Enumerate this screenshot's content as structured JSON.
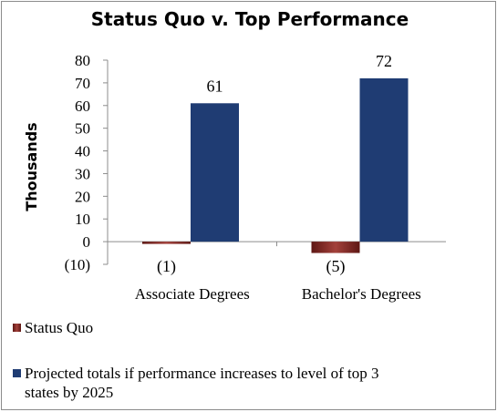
{
  "chart_data": {
    "type": "bar",
    "title": "Status Quo v. Top Performance",
    "ylabel": "Thousands",
    "xlabel": "",
    "categories": [
      "Associate Degrees",
      "Bachelor's Degrees"
    ],
    "series": [
      {
        "name": "Status Quo",
        "values": [
          -1,
          -5
        ],
        "data_labels": [
          "(1)",
          "(5)"
        ],
        "color": "#7a2420"
      },
      {
        "name": "Projected totals if performance increases to level of top 3 states by 2025",
        "values": [
          61,
          72
        ],
        "data_labels": [
          "61",
          "72"
        ],
        "color": "#1f3c73"
      }
    ],
    "ylim": [
      -10,
      80
    ],
    "yticks": [
      -10,
      0,
      10,
      20,
      30,
      40,
      50,
      60,
      70,
      80
    ],
    "ytick_labels": [
      "(10)",
      "0",
      "10",
      "20",
      "30",
      "40",
      "50",
      "60",
      "70",
      "80"
    ],
    "grid": false,
    "legend_position": "bottom"
  }
}
